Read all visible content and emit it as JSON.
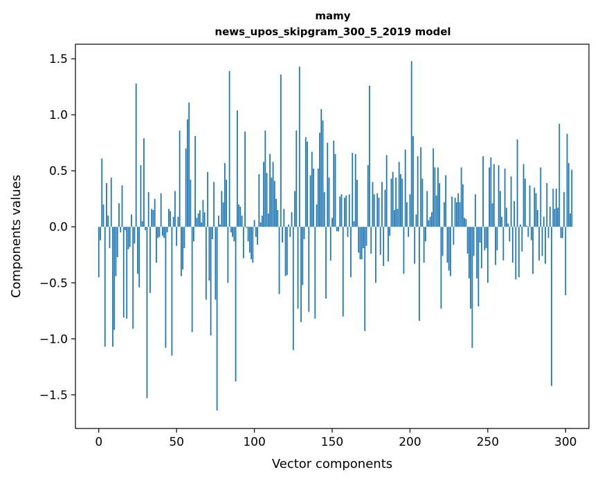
{
  "chart_data": {
    "type": "bar",
    "title_lines": [
      "mamy",
      "news_upos_skipgram_300_5_2019 model"
    ],
    "xlabel": "Vector components",
    "ylabel": "Components values",
    "xlim": [
      -15,
      315
    ],
    "ylim": [
      -1.8,
      1.63
    ],
    "xticks": [
      0,
      50,
      100,
      150,
      200,
      250,
      300
    ],
    "xtick_labels": [
      "0",
      "50",
      "100",
      "150",
      "200",
      "250",
      "300"
    ],
    "yticks": [
      -1.5,
      -1.0,
      -0.5,
      0.0,
      0.5,
      1.0,
      1.5
    ],
    "ytick_labels": [
      "−1.5",
      "−1.0",
      "−0.5",
      "0.0",
      "0.5",
      "1.0",
      "1.5"
    ],
    "bar_color": "#1f77b4",
    "grid": false,
    "series": [
      {
        "x_start": 0,
        "values": [
          -0.45,
          -0.12,
          0.61,
          0.2,
          -1.07,
          0.39,
          0.1,
          -0.19,
          0.44,
          -1.07,
          -0.92,
          -0.44,
          -0.27,
          0.21,
          -0.05,
          0.37,
          -0.81,
          -0.03,
          -0.82,
          -0.2,
          -0.18,
          0.11,
          -0.91,
          -0.15,
          1.28,
          -0.42,
          -0.54,
          0.55,
          0.05,
          0.79,
          -0.03,
          -1.53,
          0.31,
          -0.59,
          0.16,
          0.15,
          0.25,
          -0.32,
          -0.1,
          -0.09,
          0.3,
          -0.08,
          -0.1,
          -1.08,
          -0.05,
          0.16,
          0.14,
          -1.15,
          0.09,
          0.32,
          -0.17,
          0.09,
          0.86,
          -0.44,
          -0.38,
          -0.19,
          0.7,
          0.96,
          1.11,
          0.42,
          -0.94,
          -0.13,
          0.81,
          0.08,
          0.12,
          0.15,
          0.04,
          0.24,
          0.13,
          -0.65,
          0.49,
          -0.48,
          -0.97,
          -0.11,
          0.4,
          -0.65,
          -1.64,
          0.1,
          0.02,
          0.32,
          0.22,
          0.57,
          0.42,
          -0.5,
          1.39,
          -0.05,
          -0.09,
          -0.13,
          -1.38,
          1.04,
          0.2,
          0.18,
          0.1,
          -0.28,
          0.85,
          -0.01,
          -0.13,
          -0.23,
          -0.29,
          -0.32,
          0.06,
          -0.09,
          -0.16,
          0.47,
          0.04,
          0.1,
          0.58,
          0.86,
          0.48,
          0.12,
          0.65,
          0.44,
          0.58,
          0.41,
          0.25,
          0.15,
          -0.6,
          1.36,
          -0.14,
          0.16,
          -0.44,
          -0.43,
          0.02,
          -0.09,
          0.13,
          -1.1,
          0.32,
          0.86,
          -0.73,
          1.43,
          -0.85,
          -0.52,
          -0.11,
          0.8,
          0.76,
          -0.76,
          0.46,
          0.67,
          0.52,
          -0.82,
          0.2,
          0.52,
          0.84,
          1.05,
          0.95,
          0.31,
          -0.64,
          0.75,
          0.44,
          -0.3,
          0.08,
          0.77,
          0.65,
          -0.04,
          -0.04,
          0.27,
          0.29,
          -0.8,
          0.26,
          0.28,
          -0.09,
          0.29,
          -0.45,
          0.66,
          0.05,
          0.65,
          0.42,
          -0.23,
          -0.29,
          -0.29,
          -0.19,
          -0.93,
          -0.17,
          0.55,
          1.26,
          -0.24,
          0.4,
          0.29,
          -0.5,
          0.3,
          0.26,
          -0.25,
          0.4,
          -0.35,
          0.33,
          0.64,
          -0.31,
          -0.08,
          0.43,
          0.49,
          0.15,
          0.44,
          0.16,
          0.58,
          0.47,
          0.43,
          -0.42,
          0.69,
          0.22,
          -0.09,
          0.29,
          1.48,
          0.81,
          -0.33,
          0.11,
          0.63,
          -0.84,
          0.71,
          0.43,
          -0.32,
          -0.13,
          0.32,
          0.06,
          0.09,
          0.13,
          0.7,
          0.53,
          0.28,
          0.53,
          0.39,
          -0.73,
          -0.26,
          0.22,
          0.46,
          -0.32,
          -0.39,
          -0.44,
          0.27,
          -0.16,
          0.26,
          0.22,
          0.3,
          0.22,
          0.53,
          0.38,
          0.08,
          0.07,
          -0.24,
          -0.46,
          -0.73,
          -1.08,
          -0.26,
          0.29,
          -0.46,
          -0.71,
          -0.14,
          -0.37,
          0.63,
          -0.21,
          -0.19,
          -0.5,
          0.53,
          0.62,
          0.21,
          0.56,
          -0.34,
          -0.21,
          0.55,
          0.32,
          0.09,
          -0.3,
          0.52,
          0.17,
          0.03,
          -0.13,
          0.45,
          -0.32,
          0.23,
          -0.47,
          0.78,
          -0.45,
          0.02,
          -0.22,
          0.56,
          0.43,
          0.01,
          -0.09,
          0.37,
          -0.12,
          -0.42,
          0.35,
          0.3,
          0.15,
          -0.3,
          0.53,
          -0.26,
          0.09,
          -0.33,
          0.39,
          -0.1,
          0.18,
          -1.42,
          0.34,
          0.16,
          0.34,
          0.17,
          0.92,
          -0.1,
          -0.1,
          0.31,
          -0.61,
          0.83,
          0.57,
          0.12,
          0.51
        ]
      }
    ]
  }
}
